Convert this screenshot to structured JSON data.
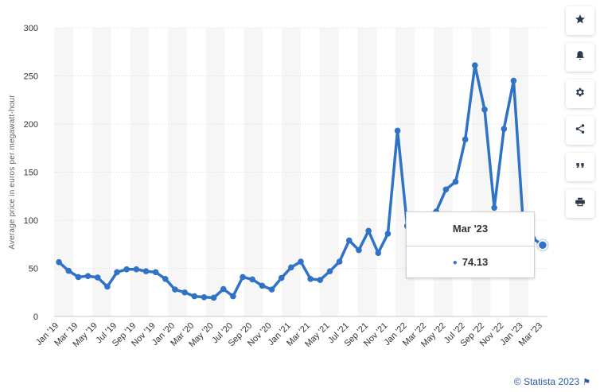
{
  "chart_data": {
    "type": "line",
    "ylabel": "Average price in euros per megawatt-hour",
    "xlabel": "",
    "title": "",
    "ylim": [
      0,
      300
    ],
    "yticks": [
      0,
      50,
      100,
      150,
      200,
      250,
      300
    ],
    "grid": true,
    "x_tick_labels": [
      "Jan '19",
      "Mar '19",
      "May '19",
      "Jul '19",
      "Sep '19",
      "Nov '19",
      "Jan '20",
      "Mar '20",
      "May '20",
      "Jul '20",
      "Sep '20",
      "Nov '20",
      "Jan '21",
      "Mar '21",
      "May '21",
      "Jul '21",
      "Sep '21",
      "Nov '21",
      "Jan '22",
      "Mar '22",
      "May '22",
      "Jul '22",
      "Sep '22",
      "Nov '22",
      "Jan '23",
      "Mar '23"
    ],
    "x": [
      "Jan '19",
      "Feb '19",
      "Mar '19",
      "Apr '19",
      "May '19",
      "Jun '19",
      "Jul '19",
      "Aug '19",
      "Sep '19",
      "Oct '19",
      "Nov '19",
      "Dec '19",
      "Jan '20",
      "Feb '20",
      "Mar '20",
      "Apr '20",
      "May '20",
      "Jun '20",
      "Jul '20",
      "Aug '20",
      "Sep '20",
      "Oct '20",
      "Nov '20",
      "Dec '20",
      "Jan '21",
      "Feb '21",
      "Mar '21",
      "Apr '21",
      "May '21",
      "Jun '21",
      "Jul '21",
      "Aug '21",
      "Sep '21",
      "Oct '21",
      "Nov '21",
      "Dec '21",
      "Jan '22",
      "Feb '22",
      "Mar '22",
      "Apr '22",
      "May '22",
      "Jun '22",
      "Jul '22",
      "Aug '22",
      "Sep '22",
      "Oct '22",
      "Nov '22",
      "Dec '22",
      "Jan '23",
      "Feb '23",
      "Mar '23"
    ],
    "series": [
      {
        "values": [
          56.5,
          47.5,
          41,
          42,
          40.5,
          31,
          46,
          49,
          49,
          47,
          46,
          39,
          28,
          25,
          21,
          20,
          19.5,
          28.5,
          21,
          41,
          38.5,
          32,
          28,
          40,
          51,
          57,
          39,
          38,
          47,
          57,
          79,
          69,
          89,
          66,
          86,
          193,
          94,
          102,
          106,
          109,
          132,
          140,
          184,
          261,
          215,
          113,
          195,
          245,
          95,
          81,
          74.13
        ],
        "color": "#2f72c6"
      }
    ],
    "tooltip": {
      "label": "Mar '23",
      "value": "74.13"
    }
  },
  "toolbar": {
    "buttons": [
      {
        "name": "star-icon"
      },
      {
        "name": "bell-icon"
      },
      {
        "name": "gear-icon"
      },
      {
        "name": "share-icon"
      },
      {
        "name": "quote-icon"
      },
      {
        "name": "print-icon"
      }
    ]
  },
  "credit": {
    "text": "© Statista 2023",
    "flag_icon": "flag-icon"
  }
}
